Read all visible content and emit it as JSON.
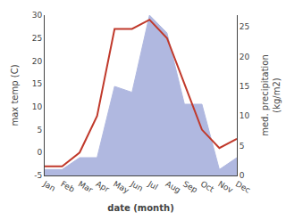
{
  "chart_data": {
    "type": "line",
    "categories": [
      "Jan",
      "Feb",
      "Mar",
      "Apr",
      "May",
      "Jun",
      "Jul",
      "Aug",
      "Sep",
      "Oct",
      "Nov",
      "Dec"
    ],
    "series": [
      {
        "type": "area",
        "axis": "y2",
        "color": "#b0b8e0",
        "values": [
          1,
          1,
          3,
          3,
          15,
          14,
          27,
          24,
          12,
          12,
          1,
          3
        ]
      },
      {
        "type": "line",
        "color": "#c0392b",
        "values": [
          -3,
          -3,
          0,
          8,
          27,
          27,
          29,
          25,
          15,
          5,
          1,
          3
        ]
      }
    ],
    "xlabel": "date (month)",
    "ylabel": "max temp (C)",
    "y2label": "med. precipitation\n(kg/m2)",
    "ylim": [
      -5,
      30
    ],
    "yticks": [
      -5,
      0,
      5,
      10,
      15,
      20,
      25,
      30
    ],
    "y2lim": [
      0,
      27
    ],
    "y2ticks": [
      0,
      5,
      10,
      15,
      20,
      25
    ],
    "grid": false
  }
}
